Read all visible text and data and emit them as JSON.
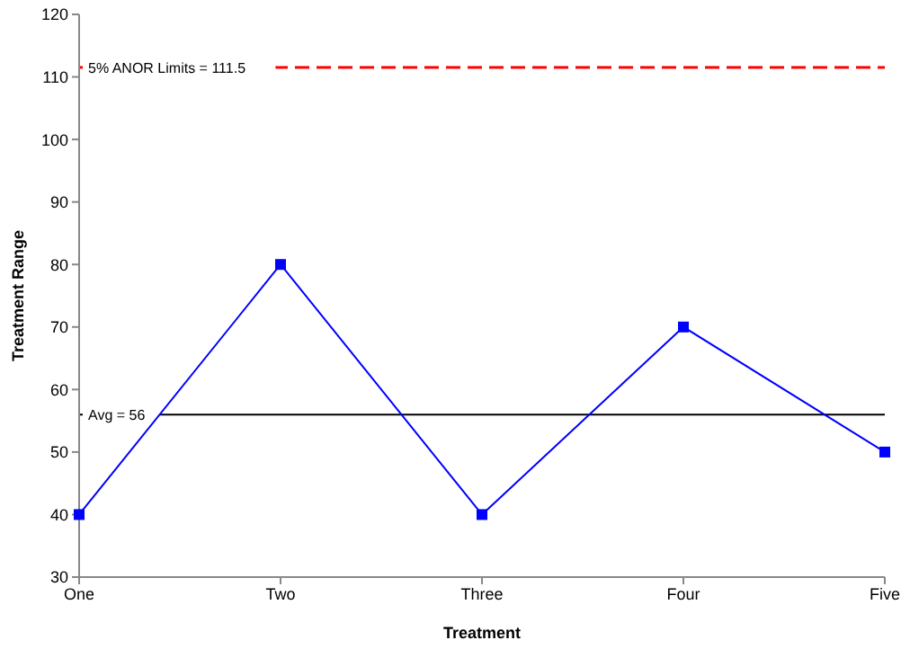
{
  "chart_data": {
    "type": "line",
    "xlabel": "Treatment",
    "ylabel": "Treatment Range",
    "categories": [
      "One",
      "Two",
      "Three",
      "Four",
      "Five"
    ],
    "series": [
      {
        "color": "#0000ff",
        "values": [
          40,
          80,
          40,
          70,
          50
        ]
      }
    ],
    "ylim": [
      30,
      120
    ],
    "yticks": [
      30,
      40,
      50,
      60,
      70,
      80,
      90,
      100,
      110,
      120
    ],
    "grid": false,
    "legend": false,
    "marker": "square",
    "line_style": "solid",
    "ref_lines": [
      {
        "axis": "y",
        "value": 111.5,
        "label": "5% ANOR Limits = 111.5",
        "color": "#ff0000",
        "line_style": "dashed"
      },
      {
        "axis": "y",
        "value": 56,
        "label": "Avg = 56",
        "color": "#000000",
        "line_style": "solid"
      }
    ]
  }
}
